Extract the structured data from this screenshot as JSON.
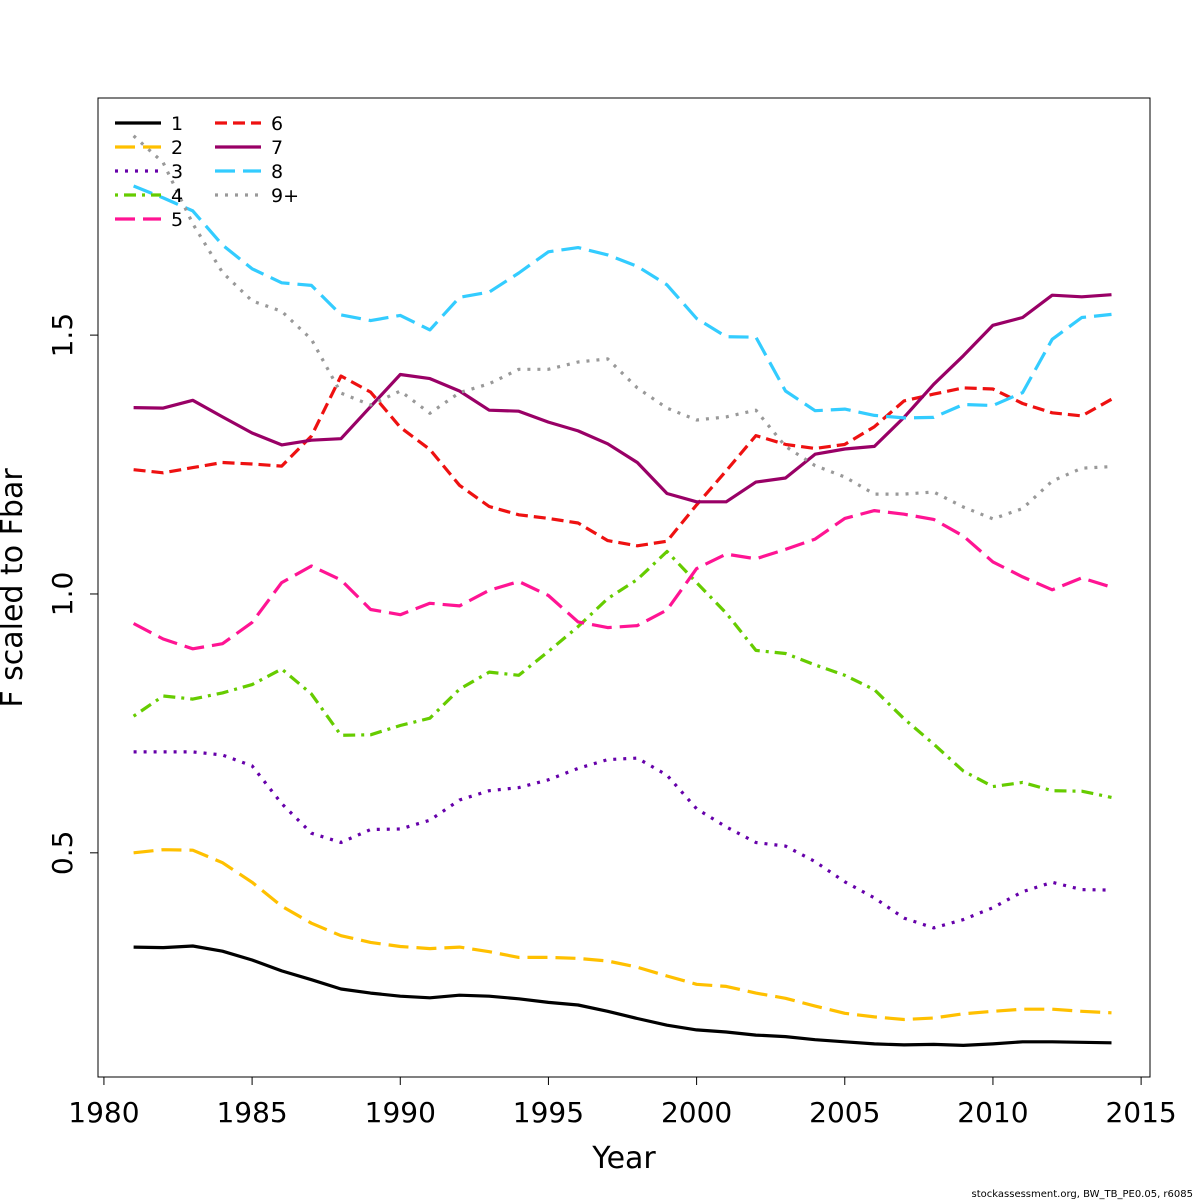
{
  "chart_data": {
    "type": "line",
    "title": "",
    "xlabel": "Year",
    "ylabel": "F scaled to Fbar",
    "xlim": [
      1979.8,
      2015.3
    ],
    "ylim": [
      0.067,
      1.958
    ],
    "xticks": [
      1980,
      1985,
      1990,
      1995,
      2000,
      2005,
      2010,
      2015
    ],
    "xtick_labels": [
      "1980",
      "1985",
      "1990",
      "1995",
      "2000",
      "2005",
      "2010",
      "2015"
    ],
    "yticks": [
      0.5,
      1.0,
      1.5
    ],
    "ytick_labels": [
      "0.5",
      "1.0",
      "1.5"
    ],
    "grid": false,
    "legend_position": "top-left",
    "x": [
      1981,
      1982,
      1983,
      1984,
      1985,
      1986,
      1987,
      1988,
      1989,
      1990,
      1991,
      1992,
      1993,
      1994,
      1995,
      1996,
      1997,
      1998,
      1999,
      2000,
      2001,
      2002,
      2003,
      2004,
      2005,
      2006,
      2007,
      2008,
      2009,
      2010,
      2011,
      2012,
      2013,
      2014
    ],
    "series": [
      {
        "name": "1",
        "color": "#000000",
        "dash": "solid",
        "values": [
          0.318,
          0.317,
          0.32,
          0.31,
          0.293,
          0.272,
          0.255,
          0.237,
          0.229,
          0.223,
          0.22,
          0.225,
          0.223,
          0.218,
          0.211,
          0.206,
          0.194,
          0.18,
          0.167,
          0.158,
          0.154,
          0.148,
          0.145,
          0.139,
          0.135,
          0.131,
          0.129,
          0.13,
          0.128,
          0.131,
          0.135,
          0.135,
          0.134,
          0.133
        ]
      },
      {
        "name": "2",
        "color": "#FFC000",
        "dash": "longdash",
        "values": [
          0.5,
          0.506,
          0.505,
          0.481,
          0.443,
          0.397,
          0.364,
          0.34,
          0.327,
          0.319,
          0.315,
          0.318,
          0.309,
          0.298,
          0.298,
          0.296,
          0.291,
          0.279,
          0.262,
          0.246,
          0.242,
          0.229,
          0.219,
          0.204,
          0.19,
          0.183,
          0.178,
          0.181,
          0.189,
          0.194,
          0.198,
          0.198,
          0.194,
          0.191
        ]
      },
      {
        "name": "3",
        "color": "#6600AA",
        "dash": "dotted",
        "values": [
          0.695,
          0.695,
          0.695,
          0.689,
          0.668,
          0.595,
          0.538,
          0.52,
          0.545,
          0.546,
          0.563,
          0.602,
          0.62,
          0.626,
          0.641,
          0.663,
          0.68,
          0.683,
          0.65,
          0.585,
          0.55,
          0.52,
          0.513,
          0.483,
          0.444,
          0.413,
          0.374,
          0.355,
          0.371,
          0.394,
          0.425,
          0.443,
          0.429,
          0.428
        ]
      },
      {
        "name": "4",
        "color": "#66CC00",
        "dash": "dotdash",
        "values": [
          0.764,
          0.803,
          0.797,
          0.809,
          0.825,
          0.855,
          0.807,
          0.727,
          0.728,
          0.746,
          0.76,
          0.816,
          0.849,
          0.843,
          0.889,
          0.937,
          0.991,
          1.028,
          1.082,
          1.022,
          0.963,
          0.891,
          0.885,
          0.863,
          0.843,
          0.815,
          0.759,
          0.71,
          0.658,
          0.628,
          0.636,
          0.62,
          0.619,
          0.607
        ]
      },
      {
        "name": "5",
        "color": "#FF1493",
        "dash": "longdash",
        "values": [
          0.943,
          0.913,
          0.894,
          0.904,
          0.945,
          1.022,
          1.054,
          1.027,
          0.97,
          0.96,
          0.982,
          0.977,
          1.007,
          1.024,
          0.997,
          0.946,
          0.935,
          0.939,
          0.969,
          1.049,
          1.077,
          1.068,
          1.086,
          1.106,
          1.146,
          1.161,
          1.154,
          1.144,
          1.112,
          1.062,
          1.033,
          1.008,
          1.031,
          1.013
        ]
      },
      {
        "name": "6",
        "color": "#EE1111",
        "dash": "dashed",
        "values": [
          1.24,
          1.234,
          1.244,
          1.254,
          1.251,
          1.247,
          1.305,
          1.421,
          1.39,
          1.322,
          1.279,
          1.21,
          1.169,
          1.153,
          1.146,
          1.137,
          1.103,
          1.093,
          1.102,
          1.172,
          1.238,
          1.306,
          1.289,
          1.281,
          1.289,
          1.323,
          1.373,
          1.386,
          1.398,
          1.396,
          1.368,
          1.35,
          1.344,
          1.376
        ]
      },
      {
        "name": "7",
        "color": "#990066",
        "dash": "solid",
        "values": [
          1.36,
          1.359,
          1.374,
          1.342,
          1.311,
          1.288,
          1.297,
          1.3,
          1.362,
          1.424,
          1.416,
          1.392,
          1.355,
          1.353,
          1.332,
          1.315,
          1.29,
          1.254,
          1.194,
          1.178,
          1.178,
          1.216,
          1.224,
          1.27,
          1.28,
          1.285,
          1.341,
          1.405,
          1.46,
          1.519,
          1.534,
          1.577,
          1.574,
          1.578
        ]
      },
      {
        "name": "8",
        "color": "#33CCFF",
        "dash": "longdash",
        "values": [
          1.788,
          1.765,
          1.74,
          1.674,
          1.628,
          1.601,
          1.596,
          1.539,
          1.528,
          1.538,
          1.51,
          1.573,
          1.583,
          1.62,
          1.661,
          1.669,
          1.655,
          1.633,
          1.597,
          1.532,
          1.497,
          1.496,
          1.392,
          1.354,
          1.357,
          1.345,
          1.34,
          1.341,
          1.366,
          1.364,
          1.389,
          1.492,
          1.534,
          1.54
        ]
      },
      {
        "name": "9+",
        "color": "#999999",
        "dash": "dotted",
        "values": [
          1.885,
          1.833,
          1.715,
          1.621,
          1.566,
          1.546,
          1.492,
          1.388,
          1.365,
          1.392,
          1.349,
          1.389,
          1.406,
          1.434,
          1.434,
          1.448,
          1.454,
          1.398,
          1.359,
          1.336,
          1.342,
          1.355,
          1.285,
          1.248,
          1.226,
          1.193,
          1.193,
          1.197,
          1.168,
          1.145,
          1.165,
          1.218,
          1.243,
          1.246
        ]
      }
    ],
    "footnote": "stockassessment.org, BW_TB_PE0.05, r6085"
  }
}
